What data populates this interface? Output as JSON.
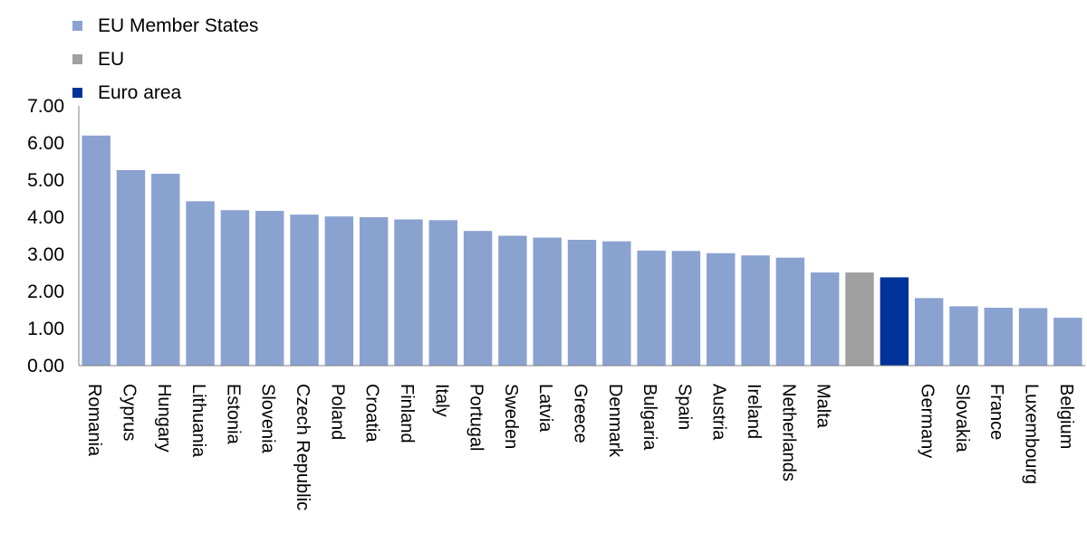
{
  "chart_data": {
    "type": "bar",
    "title": "",
    "xlabel": "",
    "ylabel": "",
    "ylim": [
      0,
      7
    ],
    "yticks": [
      "0.00",
      "1.00",
      "2.00",
      "3.00",
      "4.00",
      "5.00",
      "6.00",
      "7.00"
    ],
    "grid": false,
    "legend_position": "top-left",
    "legend": [
      {
        "label": "EU Member States",
        "color": "#8aa2d0"
      },
      {
        "label": "EU",
        "color": "#a0a0a0"
      },
      {
        "label": "Euro area",
        "color": "#003399"
      }
    ],
    "categories": [
      "Romania",
      "Cyprus",
      "Hungary",
      "Lithuania",
      "Estonia",
      "Slovenia",
      "Czech Republic",
      "Poland",
      "Croatia",
      "Finland",
      "Italy",
      "Portugal",
      "Sweden",
      "Latvia",
      "Greece",
      "Denmark",
      "Bulgaria",
      "Spain",
      "Austria",
      "Ireland",
      "Netherlands",
      "Malta",
      "",
      "",
      "Germany",
      "Slovakia",
      "France",
      "Luxembourg",
      "Belgium"
    ],
    "values": [
      6.2,
      5.27,
      5.17,
      4.43,
      4.19,
      4.17,
      4.07,
      4.02,
      4.0,
      3.94,
      3.92,
      3.63,
      3.5,
      3.45,
      3.39,
      3.35,
      3.1,
      3.09,
      3.03,
      2.97,
      2.91,
      2.51,
      2.51,
      2.38,
      1.82,
      1.6,
      1.56,
      1.55,
      1.29
    ],
    "groups": [
      "member",
      "member",
      "member",
      "member",
      "member",
      "member",
      "member",
      "member",
      "member",
      "member",
      "member",
      "member",
      "member",
      "member",
      "member",
      "member",
      "member",
      "member",
      "member",
      "member",
      "member",
      "member",
      "eu",
      "euro",
      "member",
      "member",
      "member",
      "member",
      "member"
    ]
  }
}
